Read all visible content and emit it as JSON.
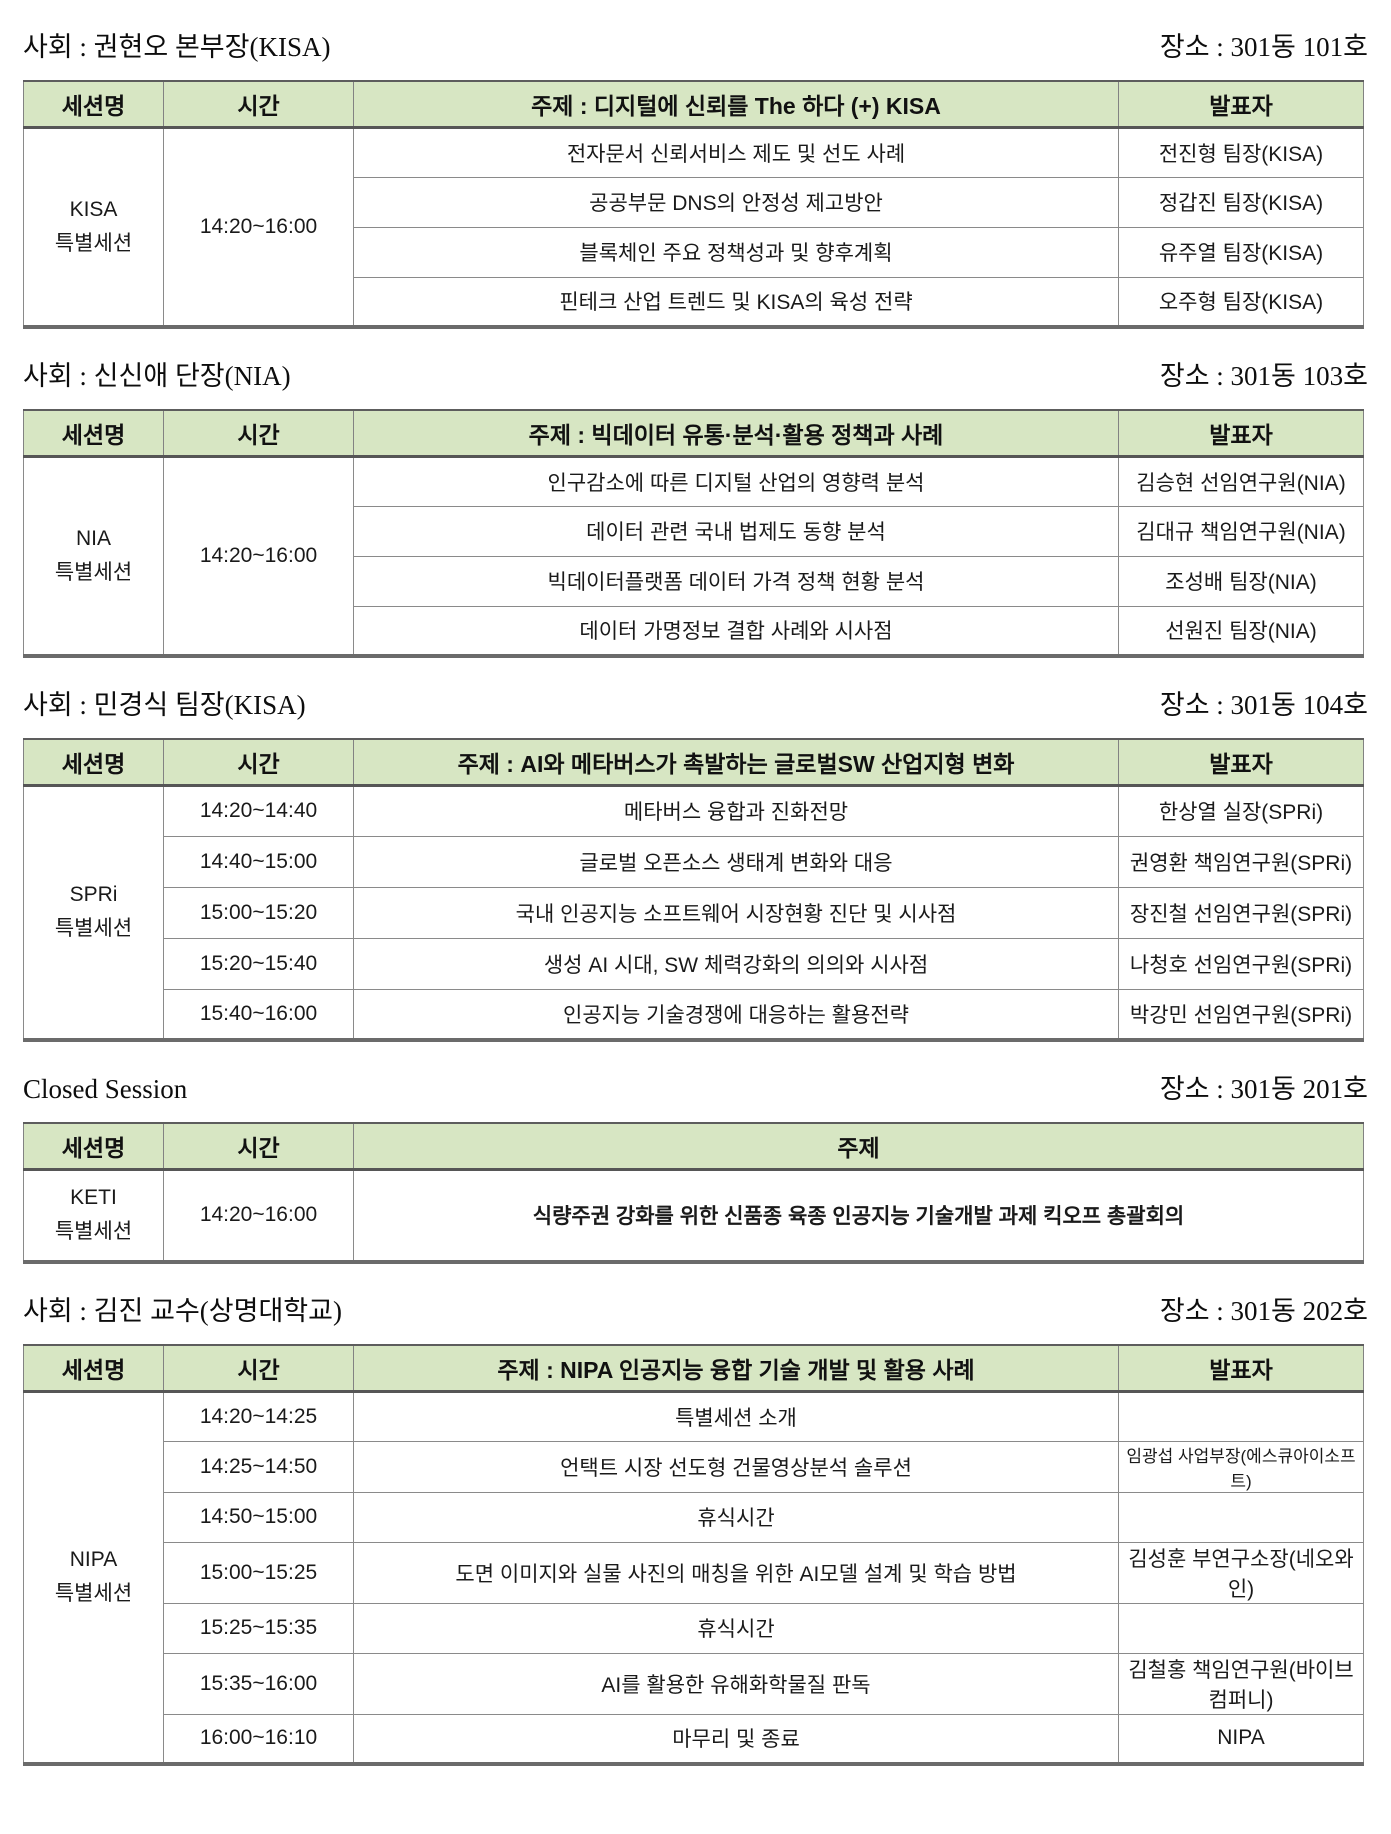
{
  "theme": {
    "header_bg": "#d7e6c3",
    "thick_border": "#5d5d5d",
    "thin_border": "#8a8a8a"
  },
  "sections": [
    {
      "moderator": "사회 : 권현오 본부장(KISA)",
      "location": "장소 : 301동 101호",
      "table": {
        "col_session": "세션명",
        "col_time": "시간",
        "col_topic": "주제 : 디지털에 신뢰를 The 하다 (+) KISA",
        "col_presenter": "발표자",
        "session_line1": "KISA",
        "session_line2": "특별세션",
        "time": "14:20~16:00",
        "rows": [
          {
            "topic": "전자문서 신뢰서비스 제도 및 선도 사례",
            "presenter": "전진형 팀장(KISA)"
          },
          {
            "topic": "공공부문 DNS의 안정성 제고방안",
            "presenter": "정갑진 팀장(KISA)"
          },
          {
            "topic": "블록체인 주요 정책성과 및 향후계획",
            "presenter": "유주열 팀장(KISA)"
          },
          {
            "topic": "핀테크 산업 트렌드 및 KISA의 육성 전략",
            "presenter": "오주형 팀장(KISA)"
          }
        ]
      }
    },
    {
      "moderator": "사회 : 신신애 단장(NIA)",
      "location": "장소 : 301동 103호",
      "table": {
        "col_session": "세션명",
        "col_time": "시간",
        "col_topic": "주제 : 빅데이터 유통·분석·활용 정책과 사례",
        "col_presenter": "발표자",
        "session_line1": "NIA",
        "session_line2": "특별세션",
        "time": "14:20~16:00",
        "rows": [
          {
            "topic": "인구감소에 따른 디지털 산업의 영향력 분석",
            "presenter": "김승현 선임연구원(NIA)"
          },
          {
            "topic": "데이터 관련 국내 법제도 동향 분석",
            "presenter": "김대규 책임연구원(NIA)"
          },
          {
            "topic": "빅데이터플랫폼 데이터 가격 정책 현황 분석",
            "presenter": "조성배 팀장(NIA)"
          },
          {
            "topic": "데이터 가명정보 결합 사례와 시사점",
            "presenter": "선원진 팀장(NIA)"
          }
        ]
      }
    },
    {
      "moderator": "사회 : 민경식 팀장(KISA)",
      "location": "장소 : 301동 104호",
      "table": {
        "col_session": "세션명",
        "col_time": "시간",
        "col_topic": "주제 : AI와 메타버스가 촉발하는 글로벌SW 산업지형 변화",
        "col_presenter": "발표자",
        "session_line1": "SPRi",
        "session_line2": "특별세션",
        "rows": [
          {
            "time": "14:20~14:40",
            "topic": "메타버스 융합과 진화전망",
            "presenter": "한상열 실장(SPRi)"
          },
          {
            "time": "14:40~15:00",
            "topic": "글로벌 오픈소스 생태계 변화와 대응",
            "presenter": "권영환 책임연구원(SPRi)"
          },
          {
            "time": "15:00~15:20",
            "topic": "국내 인공지능 소프트웨어 시장현황 진단 및 시사점",
            "presenter": "장진철 선임연구원(SPRi)"
          },
          {
            "time": "15:20~15:40",
            "topic": "생성 AI 시대, SW 체력강화의 의의와 시사점",
            "presenter": "나청호 선임연구원(SPRi)"
          },
          {
            "time": "15:40~16:00",
            "topic": "인공지능 기술경쟁에 대응하는 활용전략",
            "presenter": "박강민 선임연구원(SPRi)"
          }
        ]
      }
    },
    {
      "moderator": "Closed Session",
      "location": "장소 : 301동 201호",
      "table": {
        "col_session": "세션명",
        "col_time": "시간",
        "col_topic": "주제",
        "session_line1": "KETI",
        "session_line2": "특별세션",
        "time": "14:20~16:00",
        "topic": "식량주권 강화를 위한 신품종 육종 인공지능 기술개발 과제 킥오프 총괄회의"
      }
    },
    {
      "moderator": "사회 : 김진 교수(상명대학교)",
      "location": "장소 : 301동 202호",
      "table": {
        "col_session": "세션명",
        "col_time": "시간",
        "col_topic": "주제 : NIPA 인공지능 융합 기술 개발 및 활용 사례",
        "col_presenter": "발표자",
        "session_line1": "NIPA",
        "session_line2": "특별세션",
        "rows": [
          {
            "time": "14:20~14:25",
            "topic": "특별세션 소개",
            "presenter": ""
          },
          {
            "time": "14:25~14:50",
            "topic": "언택트 시장 선도형 건물영상분석 솔루션",
            "presenter": "임광섭 사업부장(에스큐아이소프트)"
          },
          {
            "time": "14:50~15:00",
            "topic": "휴식시간",
            "presenter": ""
          },
          {
            "time": "15:00~15:25",
            "topic": "도면 이미지와 실물 사진의 매칭을 위한 AI모델 설계 및 학습 방법",
            "presenter": "김성훈 부연구소장(네오와인)"
          },
          {
            "time": "15:25~15:35",
            "topic": "휴식시간",
            "presenter": ""
          },
          {
            "time": "15:35~16:00",
            "topic": "AI를 활용한 유해화학물질 판독",
            "presenter": "김철홍 책임연구원(바이브컴퍼니)"
          },
          {
            "time": "16:00~16:10",
            "topic": "마무리 및 종료",
            "presenter": "NIPA"
          }
        ]
      }
    }
  ]
}
